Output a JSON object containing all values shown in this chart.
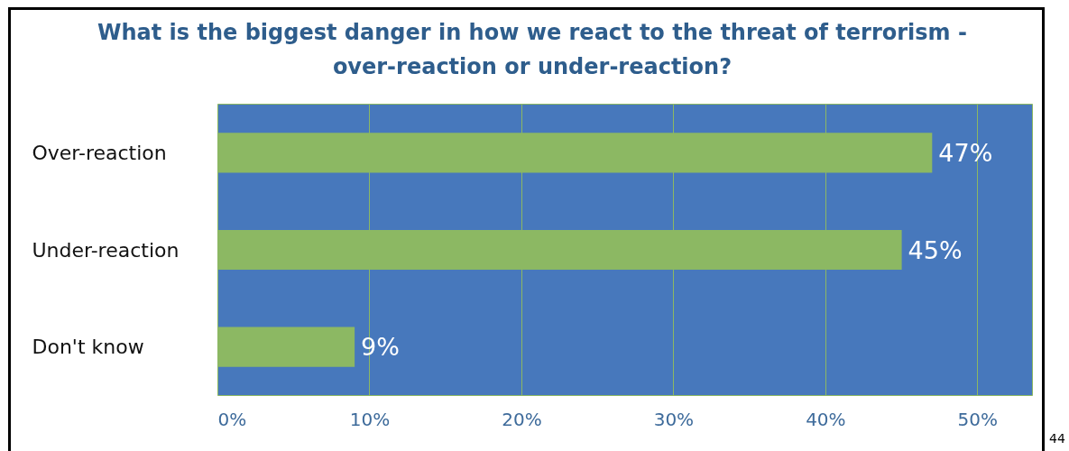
{
  "chart_data": {
    "type": "bar",
    "orientation": "horizontal",
    "title": "What is the biggest danger in how we react to the threat of terrorism -\nover-reaction or under-reaction?",
    "categories": [
      "Over-reaction",
      "Under-reaction",
      "Don't know"
    ],
    "values": [
      47,
      45,
      9
    ],
    "color": "#8cb863",
    "value_labels": [
      "47%",
      "45%",
      "9%"
    ],
    "xlim": [
      0,
      53.6
    ],
    "xticks": [
      {
        "value": 0,
        "label": "0%"
      },
      {
        "value": 10,
        "label": "10%"
      },
      {
        "value": 20,
        "label": "20%"
      },
      {
        "value": 30,
        "label": "30%"
      },
      {
        "value": 40,
        "label": "40%"
      },
      {
        "value": 50,
        "label": "50%"
      }
    ],
    "grid": "x",
    "annotations": [
      "44"
    ]
  }
}
